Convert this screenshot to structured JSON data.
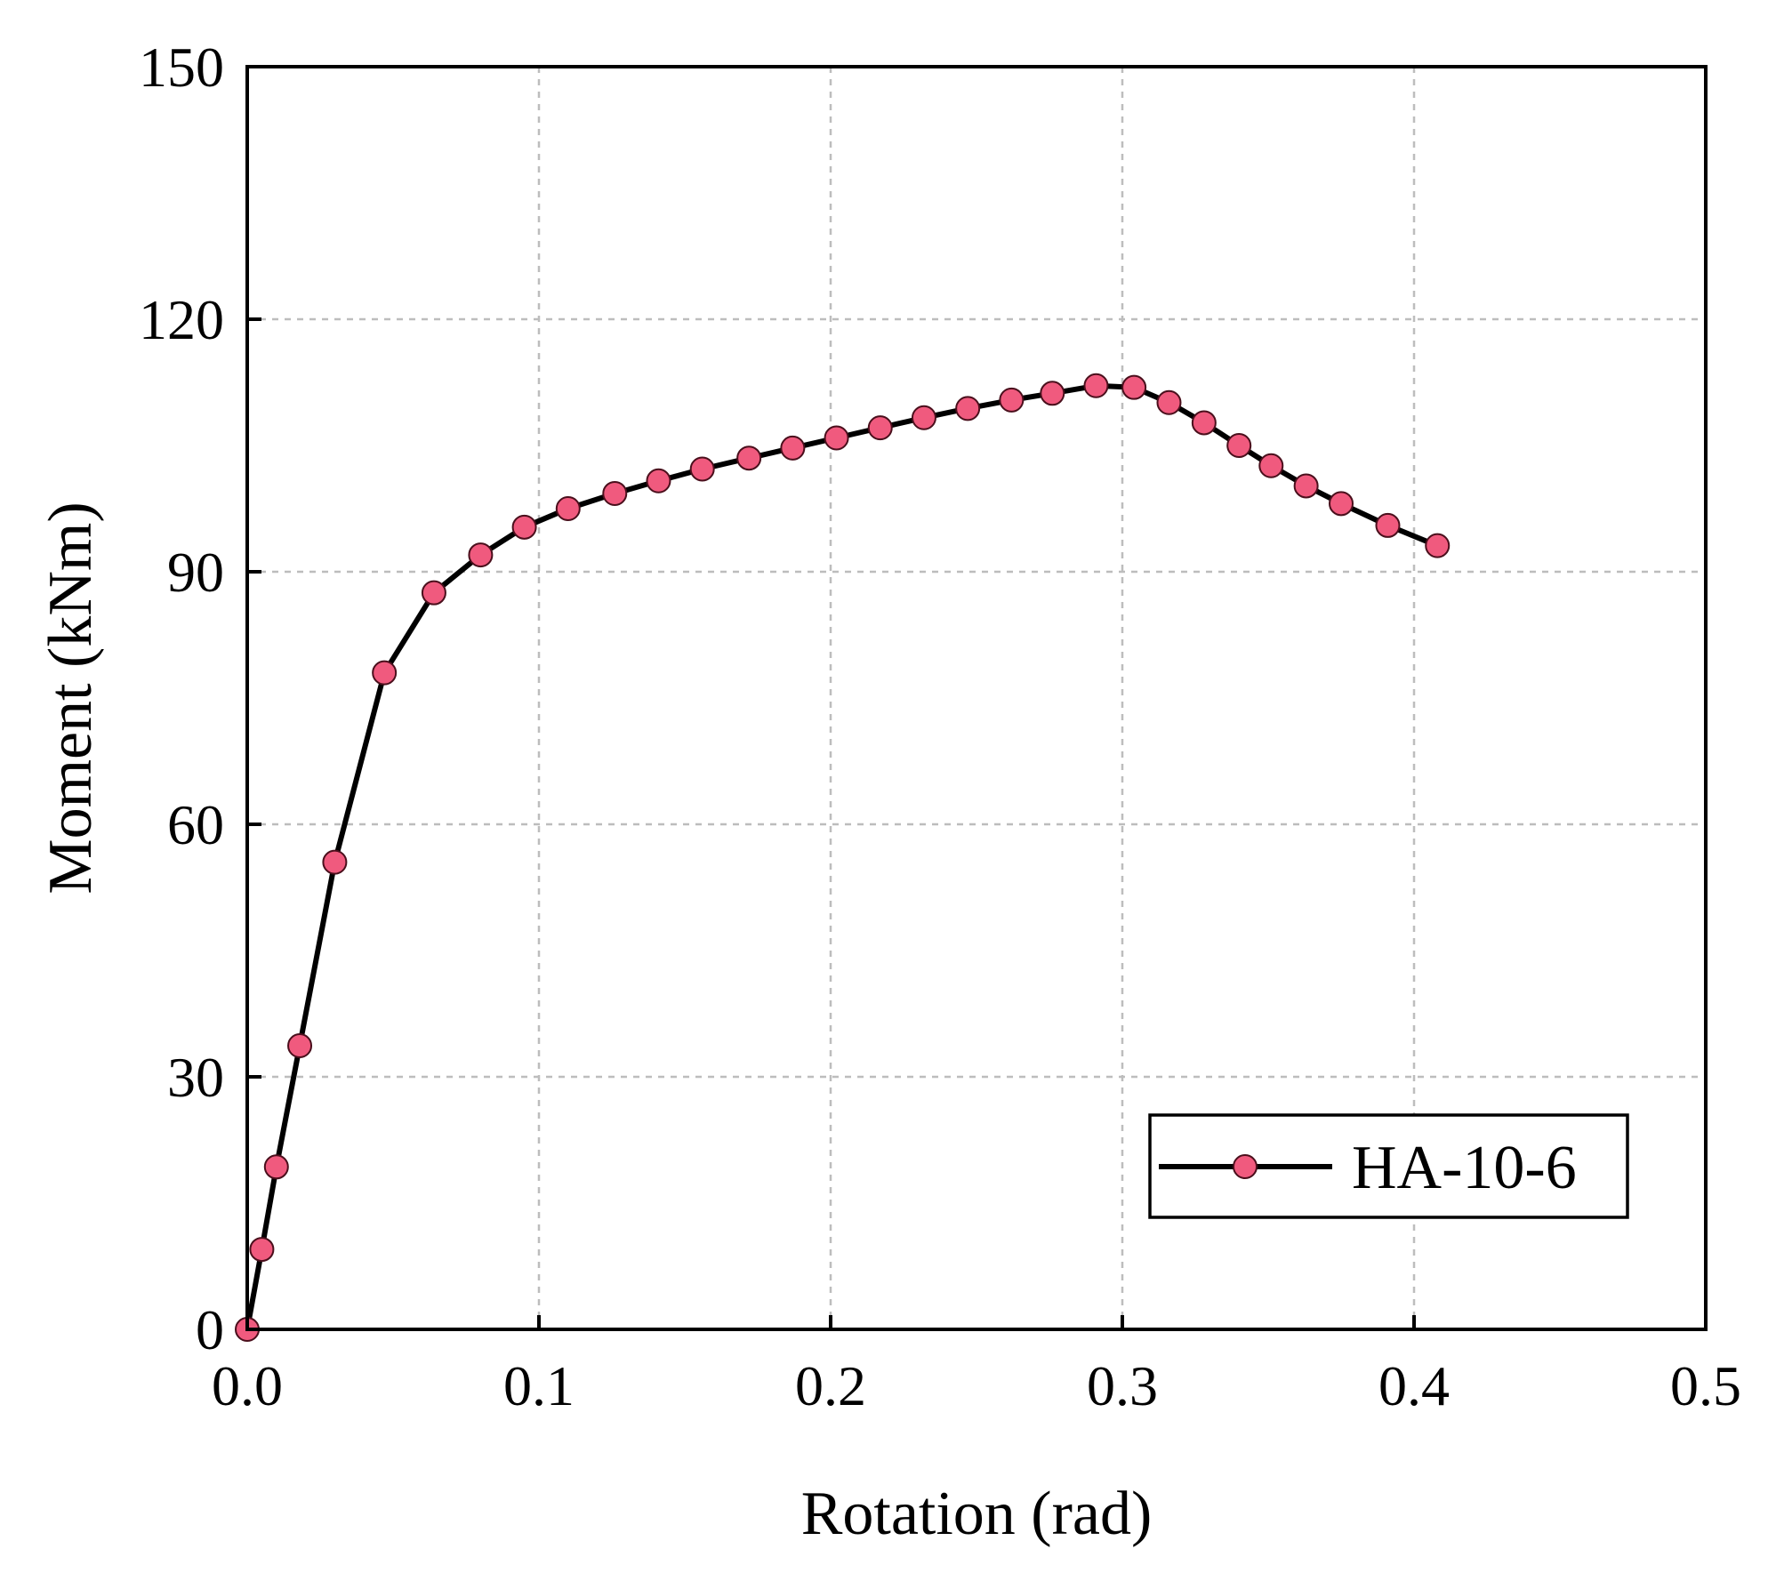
{
  "chart_data": {
    "type": "line",
    "xlabel": "Rotation (rad)",
    "ylabel": "Moment (kNm)",
    "xlim": [
      0,
      0.5
    ],
    "ylim": [
      0,
      150
    ],
    "x_ticks": [
      "0.0",
      "0.1",
      "0.2",
      "0.3",
      "0.4",
      "0.5"
    ],
    "y_ticks": [
      "0",
      "30",
      "60",
      "90",
      "120",
      "150"
    ],
    "grid": true,
    "legend_position": "bottom-right",
    "line_color": "#000000",
    "marker_color": "#f05a7e",
    "series": [
      {
        "name": "HA-10-6",
        "x": [
          0.0,
          0.005,
          0.01,
          0.018,
          0.03,
          0.047,
          0.064,
          0.08,
          0.095,
          0.11,
          0.126,
          0.141,
          0.156,
          0.172,
          0.187,
          0.202,
          0.217,
          0.232,
          0.247,
          0.262,
          0.276,
          0.291,
          0.304,
          0.316,
          0.328,
          0.34,
          0.351,
          0.363,
          0.375,
          0.391,
          0.408
        ],
        "y": [
          0,
          9.5,
          19.3,
          33.7,
          55.5,
          78,
          87.5,
          92,
          95.3,
          97.5,
          99.3,
          100.8,
          102.2,
          103.5,
          104.7,
          105.9,
          107.1,
          108.3,
          109.4,
          110.4,
          111.2,
          112.1,
          111.9,
          110.1,
          107.7,
          105,
          102.6,
          100.2,
          98.1,
          95.5,
          93.1
        ]
      }
    ]
  }
}
